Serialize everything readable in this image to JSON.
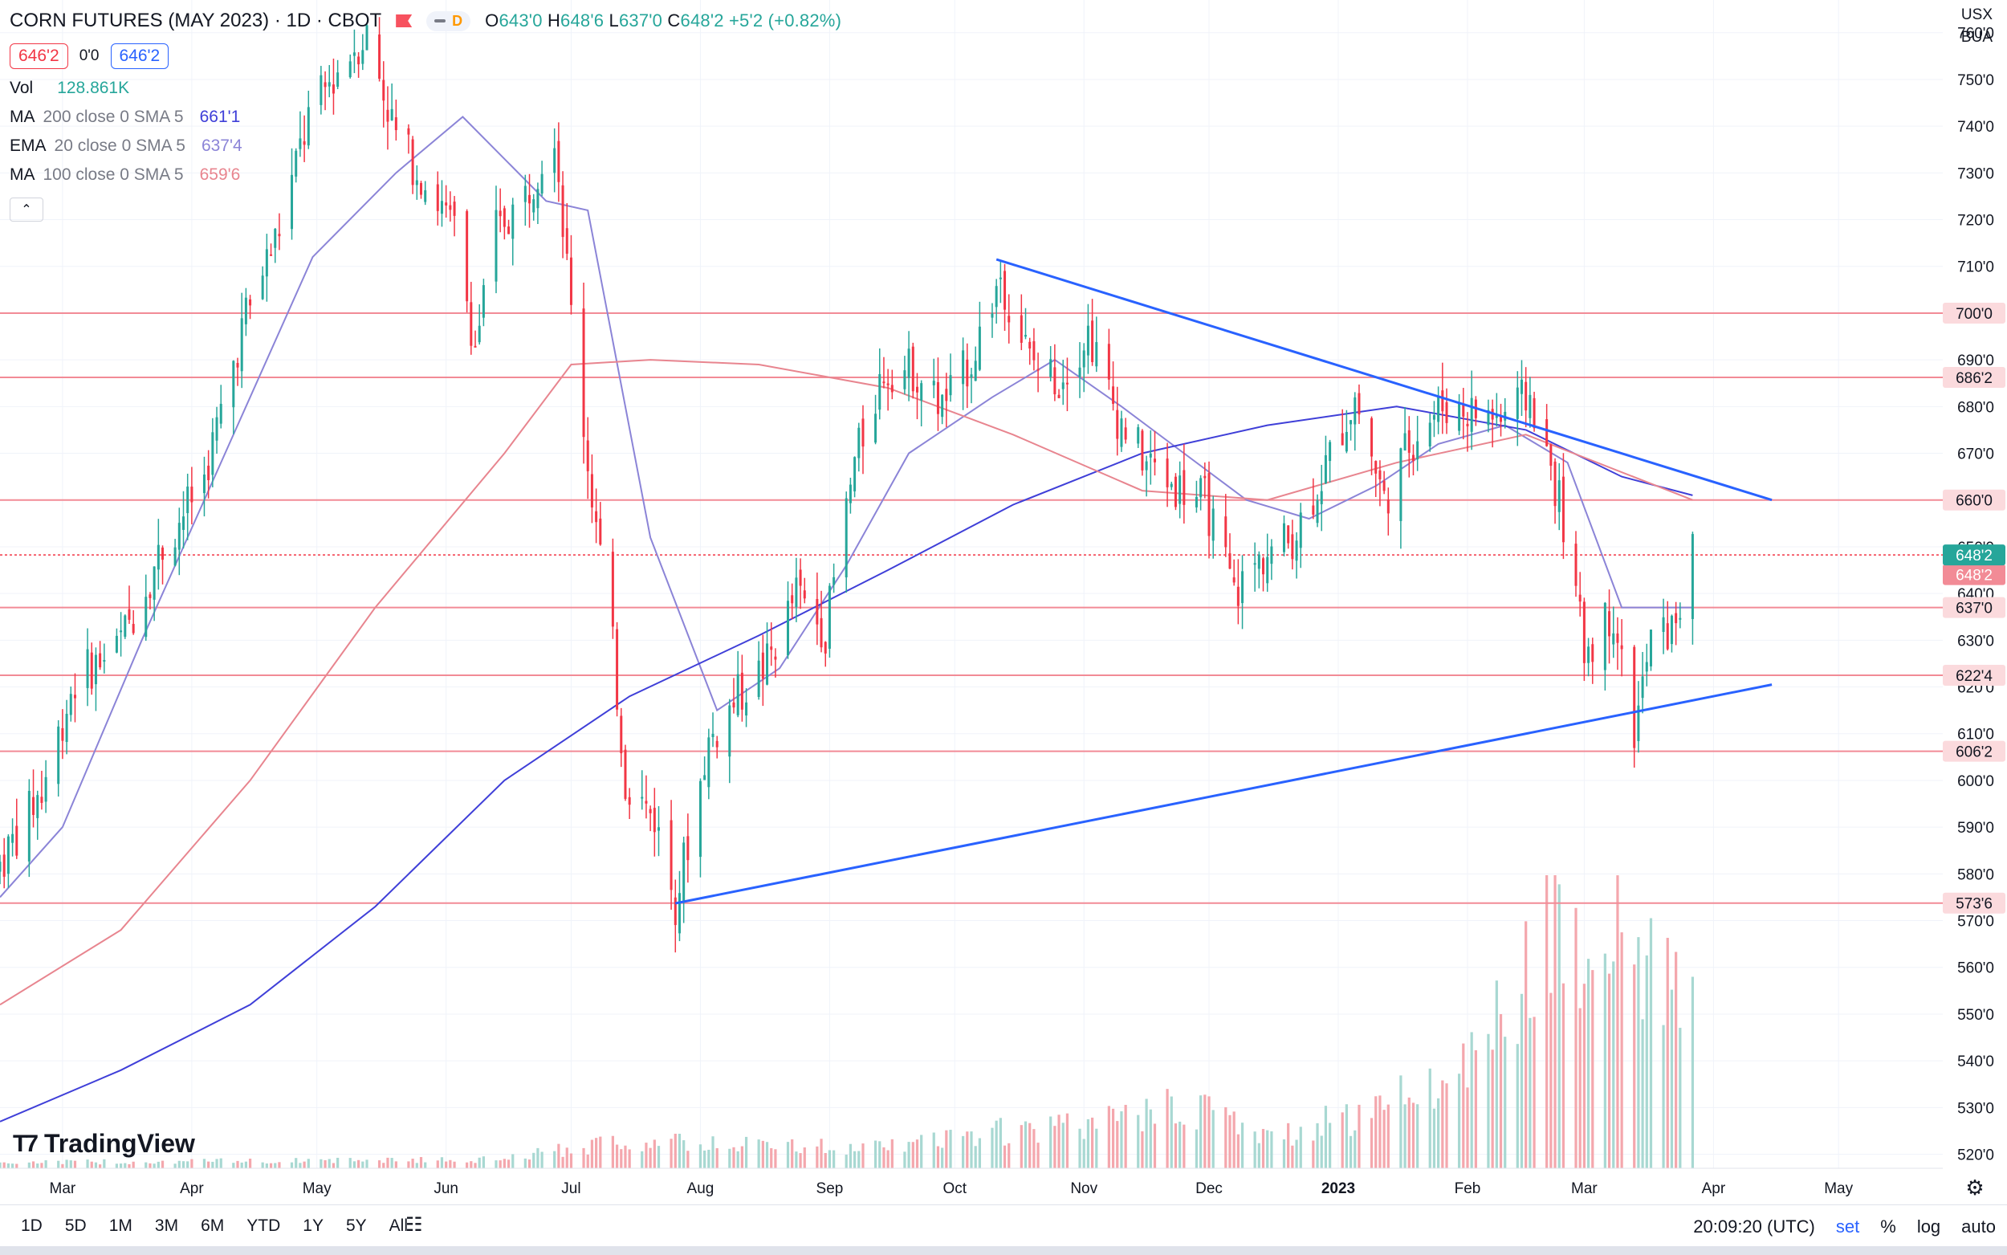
{
  "header": {
    "symbol_title": "CORN FUTURES (MAY 2023) · 1D · CBOT",
    "badge_letter": "D",
    "ohlc": {
      "o_label": "O",
      "o": "643'0",
      "h_label": "H",
      "h": "648'6",
      "l_label": "L",
      "l": "637'0",
      "c_label": "C",
      "c": "648'2",
      "change": "+5'2 (+0.82%)"
    },
    "sell_price": "646'2",
    "spread": "0'0",
    "buy_price": "646'2"
  },
  "indicators": [
    {
      "name": "Vol",
      "params": "",
      "value": "128.861K",
      "color": "#26a69a"
    },
    {
      "name": "MA",
      "params": "200 close 0 SMA 5",
      "value": "661'1",
      "color": "#3f3fd8"
    },
    {
      "name": "EMA",
      "params": "20 close 0 SMA 5",
      "value": "637'4",
      "color": "#8b84d7"
    },
    {
      "name": "MA",
      "params": "100 close 0 SMA 5",
      "value": "659'6",
      "color": "#e8858f"
    }
  ],
  "currency": {
    "line1": "USX",
    "line2": "BUA"
  },
  "brand": "TradingView",
  "bottom_bar": {
    "ranges": [
      "1D",
      "5D",
      "1M",
      "3M",
      "6M",
      "YTD",
      "1Y",
      "5Y",
      "All"
    ],
    "clock": "20:09:20 (UTC)",
    "set": "set",
    "percent": "%",
    "log": "log",
    "auto": "auto"
  },
  "colors": {
    "up": "#26a69a",
    "down": "#f23645",
    "level": "#f28b96",
    "trend": "#2962ff"
  },
  "chart_data": {
    "type": "candlestick",
    "title": "CORN FUTURES (MAY 2023) · 1D · CBOT",
    "ylim": [
      517,
      767
    ],
    "y_ticks": [
      520,
      530,
      540,
      550,
      560,
      570,
      580,
      590,
      600,
      610,
      620,
      630,
      640,
      650,
      660,
      670,
      680,
      690,
      700,
      710,
      720,
      730,
      740,
      750,
      760
    ],
    "y_tick_labels": [
      "520'0",
      "530'0",
      "540'0",
      "550'0",
      "560'0",
      "570'0",
      "580'0",
      "590'0",
      "600'0",
      "610'0",
      "620'0",
      "630'0",
      "640'0",
      "650'0",
      "660'0",
      "670'0",
      "680'0",
      "690'0",
      "700'0",
      "710'0",
      "720'0",
      "730'0",
      "740'0",
      "750'0",
      "760'0"
    ],
    "x_range": [
      "2022-02-14",
      "2023-05-26"
    ],
    "x_labels": [
      {
        "date": "2022-03-01",
        "label": "Mar"
      },
      {
        "date": "2022-04-01",
        "label": "Apr"
      },
      {
        "date": "2022-05-01",
        "label": "May"
      },
      {
        "date": "2022-06-01",
        "label": "Jun"
      },
      {
        "date": "2022-07-01",
        "label": "Jul"
      },
      {
        "date": "2022-08-01",
        "label": "Aug"
      },
      {
        "date": "2022-09-01",
        "label": "Sep"
      },
      {
        "date": "2022-10-01",
        "label": "Oct"
      },
      {
        "date": "2022-11-01",
        "label": "Nov"
      },
      {
        "date": "2022-12-01",
        "label": "Dec"
      },
      {
        "date": "2023-01-01",
        "label": "2023",
        "bold": true
      },
      {
        "date": "2023-02-01",
        "label": "Feb"
      },
      {
        "date": "2023-03-01",
        "label": "Mar"
      },
      {
        "date": "2023-04-01",
        "label": "Apr"
      },
      {
        "date": "2023-05-01",
        "label": "May"
      }
    ],
    "close_path": [
      [
        "2022-02-14",
        582
      ],
      [
        "2022-02-24",
        598
      ],
      [
        "2022-03-04",
        622
      ],
      [
        "2022-03-14",
        628
      ],
      [
        "2022-03-24",
        648
      ],
      [
        "2022-04-04",
        665
      ],
      [
        "2022-04-14",
        700
      ],
      [
        "2022-04-22",
        718
      ],
      [
        "2022-04-29",
        742
      ],
      [
        "2022-05-06",
        752
      ],
      [
        "2022-05-13",
        760
      ],
      [
        "2022-05-20",
        738
      ],
      [
        "2022-05-27",
        728
      ],
      [
        "2022-06-03",
        718
      ],
      [
        "2022-06-08",
        693
      ],
      [
        "2022-06-13",
        718
      ],
      [
        "2022-06-20",
        725
      ],
      [
        "2022-06-27",
        740
      ],
      [
        "2022-07-01",
        700
      ],
      [
        "2022-07-05",
        668
      ],
      [
        "2022-07-11",
        628
      ],
      [
        "2022-07-14",
        600
      ],
      [
        "2022-07-21",
        592
      ],
      [
        "2022-07-26",
        574
      ],
      [
        "2022-08-03",
        608
      ],
      [
        "2022-08-10",
        618
      ],
      [
        "2022-08-17",
        625
      ],
      [
        "2022-08-24",
        640
      ],
      [
        "2022-08-31",
        632
      ],
      [
        "2022-09-07",
        668
      ],
      [
        "2022-09-14",
        688
      ],
      [
        "2022-09-21",
        688
      ],
      [
        "2022-09-28",
        680
      ],
      [
        "2022-10-05",
        690
      ],
      [
        "2022-10-12",
        708
      ],
      [
        "2022-10-19",
        690
      ],
      [
        "2022-10-26",
        686
      ],
      [
        "2022-11-02",
        696
      ],
      [
        "2022-11-09",
        678
      ],
      [
        "2022-11-16",
        668
      ],
      [
        "2022-11-23",
        663
      ],
      [
        "2022-11-30",
        660
      ],
      [
        "2022-12-07",
        640
      ],
      [
        "2022-12-14",
        648
      ],
      [
        "2022-12-21",
        652
      ],
      [
        "2022-12-28",
        665
      ],
      [
        "2023-01-05",
        682
      ],
      [
        "2023-01-12",
        660
      ],
      [
        "2023-01-19",
        674
      ],
      [
        "2023-01-26",
        680
      ],
      [
        "2023-02-02",
        679
      ],
      [
        "2023-02-09",
        678
      ],
      [
        "2023-02-16",
        682
      ],
      [
        "2023-02-23",
        660
      ],
      [
        "2023-03-01",
        628
      ],
      [
        "2023-03-08",
        636
      ],
      [
        "2023-03-13",
        610
      ],
      [
        "2023-03-17",
        630
      ],
      [
        "2023-03-22",
        632
      ],
      [
        "2023-03-27",
        648
      ]
    ],
    "series": [
      {
        "name": "EMA 20",
        "color": "#8b84d7",
        "points": [
          [
            "2022-02-14",
            575
          ],
          [
            "2022-03-01",
            590
          ],
          [
            "2022-03-20",
            630
          ],
          [
            "2022-04-10",
            672
          ],
          [
            "2022-04-30",
            712
          ],
          [
            "2022-05-20",
            730
          ],
          [
            "2022-06-05",
            742
          ],
          [
            "2022-06-25",
            724
          ],
          [
            "2022-07-05",
            722
          ],
          [
            "2022-07-20",
            652
          ],
          [
            "2022-08-05",
            615
          ],
          [
            "2022-08-20",
            624
          ],
          [
            "2022-09-05",
            646
          ],
          [
            "2022-09-20",
            670
          ],
          [
            "2022-10-10",
            682
          ],
          [
            "2022-10-25",
            690
          ],
          [
            "2022-11-10",
            680
          ],
          [
            "2022-11-25",
            670
          ],
          [
            "2022-12-10",
            660
          ],
          [
            "2022-12-25",
            656
          ],
          [
            "2023-01-10",
            663
          ],
          [
            "2023-01-25",
            672
          ],
          [
            "2023-02-10",
            676
          ],
          [
            "2023-02-25",
            668
          ],
          [
            "2023-03-10",
            637
          ],
          [
            "2023-03-27",
            637
          ]
        ]
      },
      {
        "name": "MA 200",
        "color": "#3f3fd8",
        "points": [
          [
            "2022-02-14",
            527
          ],
          [
            "2022-03-15",
            538
          ],
          [
            "2022-04-15",
            552
          ],
          [
            "2022-05-15",
            573
          ],
          [
            "2022-06-15",
            600
          ],
          [
            "2022-07-15",
            618
          ],
          [
            "2022-08-15",
            631
          ],
          [
            "2022-09-15",
            645
          ],
          [
            "2022-10-15",
            659
          ],
          [
            "2022-11-15",
            670
          ],
          [
            "2022-12-15",
            676
          ],
          [
            "2023-01-15",
            680
          ],
          [
            "2023-02-15",
            675
          ],
          [
            "2023-03-10",
            665
          ],
          [
            "2023-03-27",
            661
          ]
        ]
      },
      {
        "name": "MA 100",
        "color": "#e8858f",
        "points": [
          [
            "2022-02-14",
            552
          ],
          [
            "2022-03-15",
            568
          ],
          [
            "2022-04-15",
            600
          ],
          [
            "2022-05-15",
            637
          ],
          [
            "2022-06-15",
            670
          ],
          [
            "2022-07-01",
            689
          ],
          [
            "2022-07-20",
            690
          ],
          [
            "2022-08-15",
            689
          ],
          [
            "2022-09-15",
            684
          ],
          [
            "2022-10-15",
            674
          ],
          [
            "2022-11-15",
            662
          ],
          [
            "2022-12-15",
            660
          ],
          [
            "2023-01-15",
            668
          ],
          [
            "2023-02-15",
            674
          ],
          [
            "2023-03-27",
            660
          ]
        ]
      }
    ],
    "horizontal_levels": [
      {
        "value": 700,
        "label": "700'0"
      },
      {
        "value": 686.25,
        "label": "686'2"
      },
      {
        "value": 660,
        "label": "660'0"
      },
      {
        "value": 637,
        "label": "637'0"
      },
      {
        "value": 622.5,
        "label": "622'4"
      },
      {
        "value": 606.25,
        "label": "606'2"
      },
      {
        "value": 573.75,
        "label": "573'6"
      }
    ],
    "current_price": {
      "value": 648.25,
      "label": "648'2",
      "color": "#26a69a"
    },
    "price_tag": {
      "value": 648.25,
      "label": "648'2",
      "color": "#f28b96"
    },
    "trendlines": [
      {
        "from": [
          "2022-10-11",
          711.5
        ],
        "to": [
          "2023-04-15",
          660
        ],
        "color": "#2962ff"
      },
      {
        "from": [
          "2022-07-26",
          573.7
        ],
        "to": [
          "2023-04-15",
          620.5
        ],
        "color": "#2962ff"
      }
    ],
    "volume": {
      "max_label": "128.861K",
      "spikes": [
        [
          "2022-02-14",
          0.02
        ],
        [
          "2022-06-15",
          0.03
        ],
        [
          "2022-07-10",
          0.09
        ],
        [
          "2022-09-15",
          0.07
        ],
        [
          "2022-10-08",
          0.12
        ],
        [
          "2022-11-01",
          0.14
        ],
        [
          "2022-11-28",
          0.22
        ],
        [
          "2022-12-15",
          0.1
        ],
        [
          "2023-01-05",
          0.18
        ],
        [
          "2023-01-25",
          0.3
        ],
        [
          "2023-02-10",
          0.5
        ],
        [
          "2023-02-24",
          0.92
        ],
        [
          "2023-03-01",
          0.88
        ],
        [
          "2023-03-10",
          0.8
        ],
        [
          "2023-03-20",
          0.66
        ],
        [
          "2023-03-27",
          0.55
        ]
      ]
    }
  }
}
